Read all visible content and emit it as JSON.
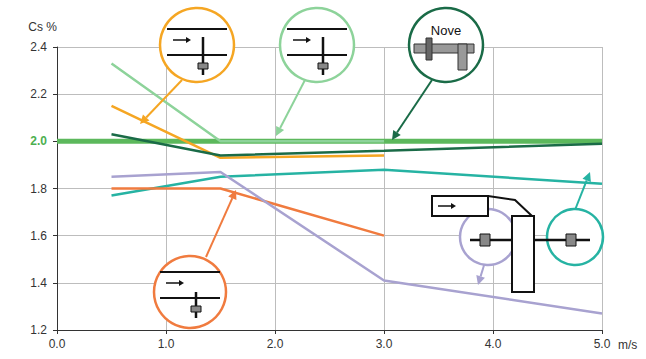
{
  "chart_data": {
    "type": "line",
    "xlabel": "m/s",
    "ylabel": "Cs %",
    "xlim": [
      0,
      5
    ],
    "ylim": [
      1.2,
      2.4
    ],
    "xticks": [
      {
        "value": 0,
        "label": "0.0"
      },
      {
        "value": 1,
        "label": "1.0"
      },
      {
        "value": 2,
        "label": "2.0"
      },
      {
        "value": 3,
        "label": "3.0"
      },
      {
        "value": 4,
        "label": "4.0"
      },
      {
        "value": 5,
        "label": "5.0"
      }
    ],
    "yticks": [
      1.2,
      1.4,
      1.6,
      1.8,
      {
        "value": 2,
        "label": "2.0"
      },
      2.2,
      2.4
    ],
    "grid": true,
    "series": [
      {
        "color": "#5cb85c",
        "line_style": "thick",
        "x": [
          0,
          5
        ],
        "values": [
          2.0,
          2.0
        ]
      },
      {
        "color": "#8dd39a",
        "line_style": "solid",
        "x": [
          0.5,
          1.5,
          3.0
        ],
        "values": [
          2.33,
          2.0,
          2.0
        ]
      },
      {
        "color": "#f5a623",
        "line_style": "solid",
        "x": [
          0.5,
          1.5,
          3.0
        ],
        "values": [
          2.15,
          1.93,
          1.94
        ]
      },
      {
        "color": "#1a6b47",
        "line_style": "solid",
        "x": [
          0.5,
          1.5,
          3.0,
          5.0
        ],
        "values": [
          2.03,
          1.94,
          1.96,
          1.99
        ],
        "annotation": "Nove"
      },
      {
        "color": "#26b3a3",
        "line_style": "solid",
        "x": [
          0.5,
          1.5,
          3.0,
          5.0
        ],
        "values": [
          1.77,
          1.85,
          1.88,
          1.82
        ]
      },
      {
        "color": "#f07b3f",
        "line_style": "solid",
        "x": [
          0.5,
          1.5,
          3.0
        ],
        "values": [
          1.8,
          1.8,
          1.6
        ]
      },
      {
        "color": "#a8a2d0",
        "line_style": "solid",
        "x": [
          0.5,
          1.5,
          3.0,
          5.0
        ],
        "values": [
          1.85,
          1.87,
          1.41,
          1.27
        ]
      }
    ]
  }
}
